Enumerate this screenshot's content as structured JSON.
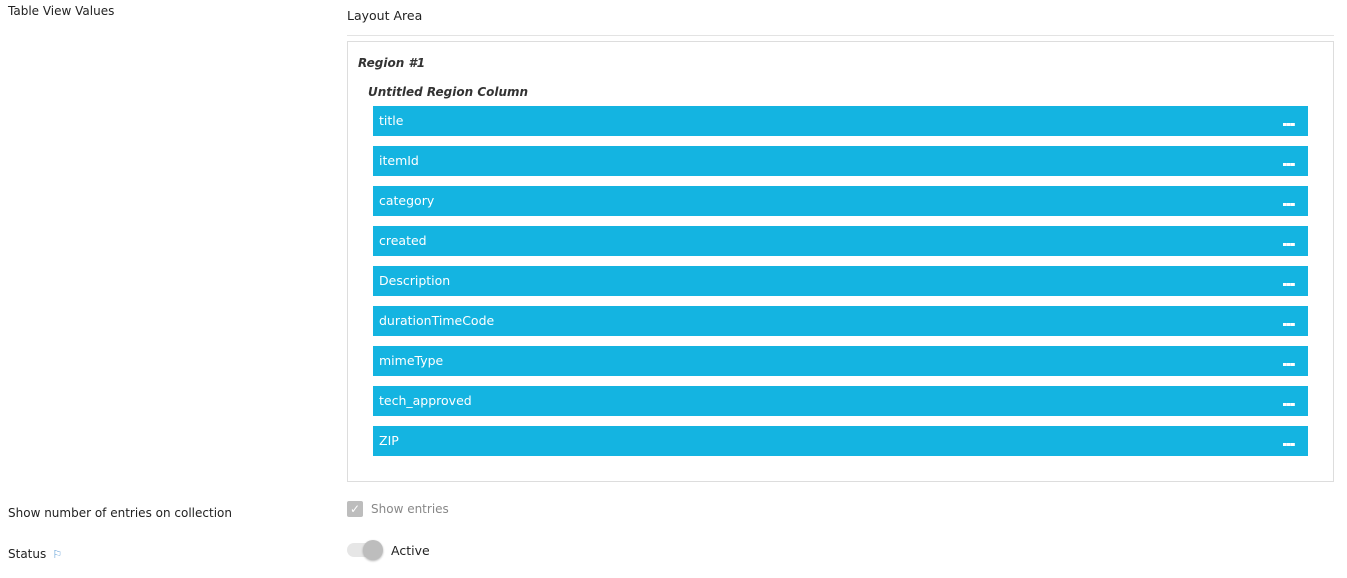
{
  "labels": {
    "table_view": "Table View Values",
    "show_number": "Show number of entries on collection",
    "status": "Status"
  },
  "layout": {
    "title": "Layout Area",
    "region": "Region #1",
    "column": "Untitled Region Column",
    "fields": [
      {
        "label": "title"
      },
      {
        "label": "itemId"
      },
      {
        "label": "category"
      },
      {
        "label": "created"
      },
      {
        "label": "Description"
      },
      {
        "label": "durationTimeCode"
      },
      {
        "label": "mimeType"
      },
      {
        "label": "tech_approved"
      },
      {
        "label": "ZIP"
      }
    ]
  },
  "show_entries": {
    "label": "Show entries",
    "checked": true
  },
  "status": {
    "label": "Active",
    "on": true
  },
  "colors": {
    "field_bg": "#14b4e1"
  }
}
